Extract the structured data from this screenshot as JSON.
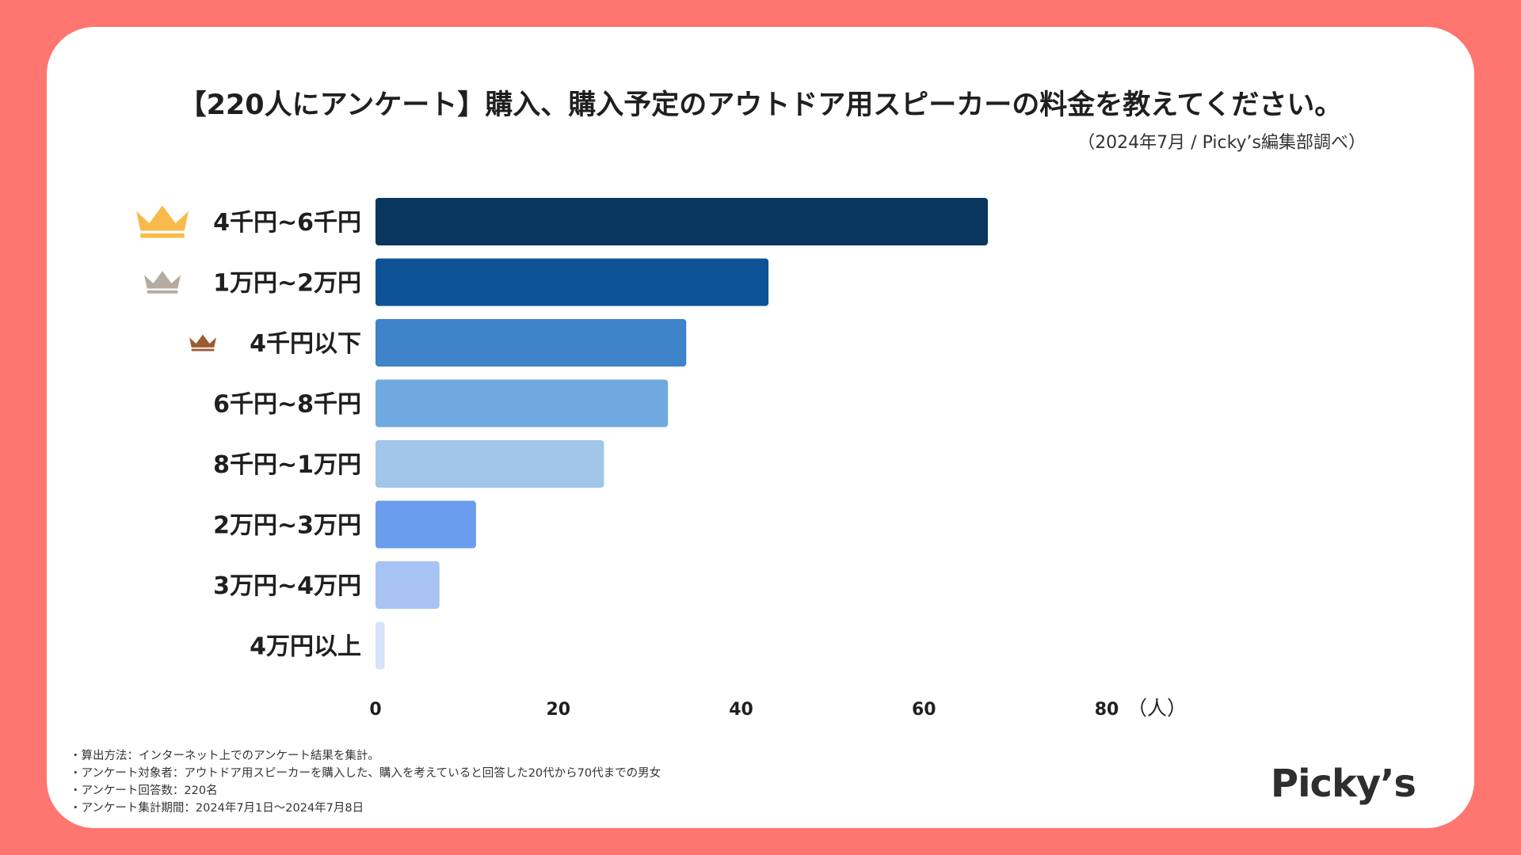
{
  "header": {
    "title": "【220人にアンケート】購入、購入予定のアウトドア用スピーカーの料金を教えてください。",
    "subtitle": "（2024年7月 / Picky’s編集部調べ）"
  },
  "chart_data": {
    "type": "bar",
    "orientation": "horizontal",
    "categories": [
      "4千円~6千円",
      "1万円~2万円",
      "4千円以下",
      "6千円~8千円",
      "8千円~1万円",
      "2万円~3万円",
      "3万円~4万円",
      "4万円以上"
    ],
    "values": [
      67,
      43,
      34,
      32,
      25,
      11,
      7,
      1
    ],
    "bar_colors": [
      "#08365f",
      "#0e5296",
      "#3f84c8",
      "#6fa9df",
      "#a1c6e9",
      "#6a9ded",
      "#a6c3f4",
      "#d6e3fa"
    ],
    "rank_icons": [
      {
        "rank": 1,
        "icon": "crown-gold-icon",
        "color": "#f8bb4b"
      },
      {
        "rank": 2,
        "icon": "crown-silver-icon",
        "color": "#b6aba1"
      },
      {
        "rank": 3,
        "icon": "crown-bronze-icon",
        "color": "#9c5b33"
      }
    ],
    "xlim": [
      0,
      80
    ],
    "xticks": [
      0,
      20,
      40,
      60,
      80
    ],
    "unit_label": "（人）",
    "xlabel": "",
    "ylabel": "",
    "grid": false,
    "legend": false
  },
  "notes": [
    "・算出方法：インターネット上でのアンケート結果を集計。",
    "・アンケート対象者：アウトドア用スピーカーを購入した、購入を考えていると回答した20代から70代までの男女",
    "・アンケート回答数：220名",
    "・アンケート集計期間：2024年7月1日〜2024年7月8日"
  ],
  "brand": {
    "logo_text": "Picky’s"
  }
}
